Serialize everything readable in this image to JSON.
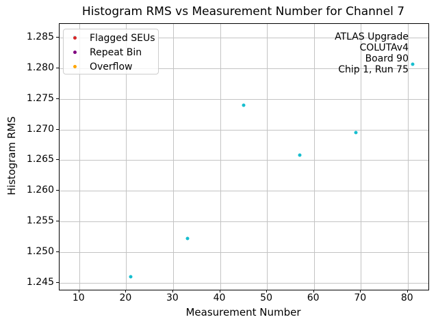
{
  "figure": {
    "title": "Histogram RMS vs Measurement Number for Channel 7",
    "xlabel": "Measurement Number",
    "ylabel": "Histogram RMS"
  },
  "legend": {
    "items": [
      {
        "label": "Flagged SEUs",
        "marker": "dot-icon",
        "color": "#d62728"
      },
      {
        "label": "Repeat Bin",
        "marker": "dot-icon",
        "color": "#800080"
      },
      {
        "label": "Overflow",
        "marker": "dot-icon",
        "color": "#ffa500"
      }
    ]
  },
  "annotation": {
    "lines": [
      "ATLAS Upgrade",
      "COLUTAv4",
      "Board 90",
      "Chip 1, Run 75"
    ]
  },
  "colors": {
    "points": "#17becf",
    "grid": "#c3c3c3",
    "spine": "#000000"
  },
  "chart_data": {
    "type": "scatter",
    "title": "Histogram RMS vs Measurement Number for Channel 7",
    "xlabel": "Measurement Number",
    "ylabel": "Histogram RMS",
    "grid": true,
    "legend_position": "upper left",
    "xlim": [
      5.8,
      84.4
    ],
    "ylim": [
      1.2439,
      1.2872
    ],
    "xticks": [
      10,
      20,
      30,
      40,
      50,
      60,
      70,
      80
    ],
    "xtick_labels": [
      "10",
      "20",
      "30",
      "40",
      "50",
      "60",
      "70",
      "80"
    ],
    "yticks": [
      1.245,
      1.25,
      1.255,
      1.26,
      1.265,
      1.27,
      1.275,
      1.28,
      1.285
    ],
    "ytick_labels": [
      "1.245",
      "1.250",
      "1.255",
      "1.260",
      "1.265",
      "1.270",
      "1.275",
      "1.280",
      "1.285"
    ],
    "series": [
      {
        "name": "Histogram RMS",
        "color": "#17becf",
        "points": [
          [
            9,
            1.2851
          ],
          [
            21,
            1.246
          ],
          [
            33,
            1.2522
          ],
          [
            45,
            1.274
          ],
          [
            57,
            1.2658
          ],
          [
            69,
            1.2695
          ],
          [
            81,
            1.2806
          ]
        ]
      },
      {
        "name": "Flagged SEUs",
        "color": "#d62728",
        "points": []
      },
      {
        "name": "Repeat Bin",
        "color": "#800080",
        "points": []
      },
      {
        "name": "Overflow",
        "color": "#ffa500",
        "points": []
      }
    ]
  }
}
